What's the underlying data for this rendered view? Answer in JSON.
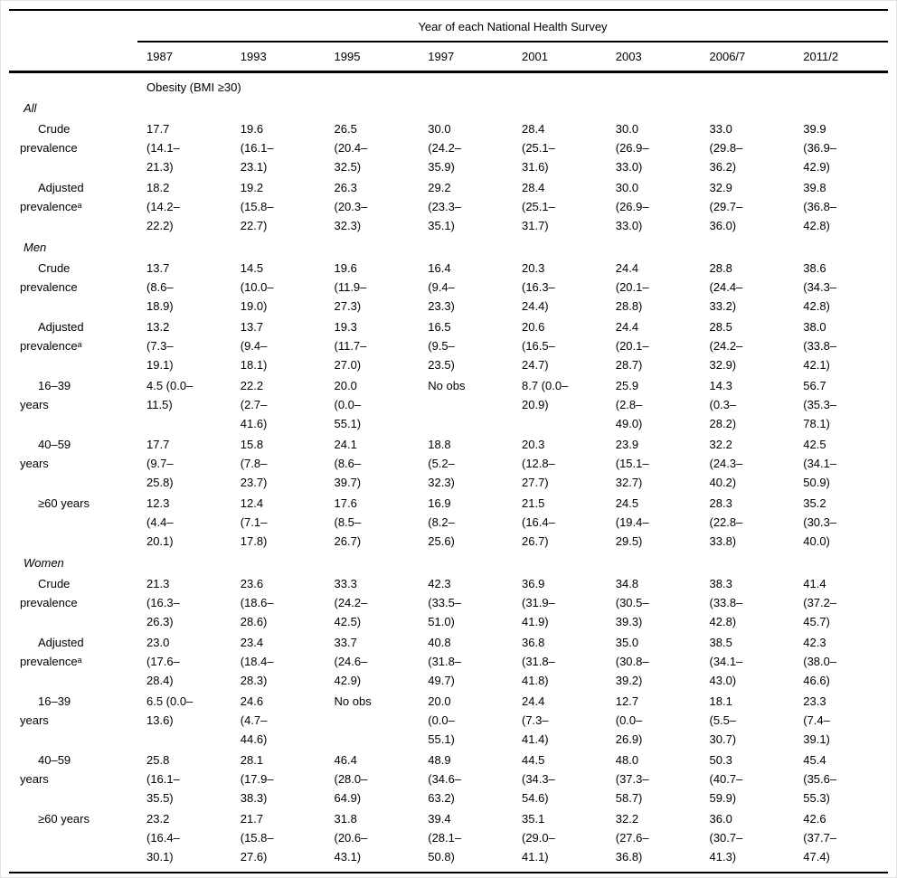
{
  "table": {
    "spanner": "Year of each National Health Survey",
    "years": [
      "1987",
      "1993",
      "1995",
      "1997",
      "2001",
      "2003",
      "2006/7",
      "2011/2"
    ],
    "subheader": "Obesity (BMI ≥30)",
    "no_observation_text": "No obs",
    "footnote_marker": "ᵃ",
    "sections": [
      {
        "label": "All",
        "rows": [
          {
            "label": "Crude\nprevalence",
            "cells": [
              "17.7\n(14.1–\n21.3)",
              "19.6\n(16.1–\n23.1)",
              "26.5\n(20.4–\n32.5)",
              "30.0\n(24.2–\n35.9)",
              "28.4\n(25.1–\n31.6)",
              "30.0\n(26.9–\n33.0)",
              "33.0\n(29.8–\n36.2)",
              "39.9\n(36.9–\n42.9)"
            ]
          },
          {
            "label": "Adjusted\nprevalenceᵃ",
            "cells": [
              "18.2\n(14.2–\n22.2)",
              "19.2\n(15.8–\n22.7)",
              "26.3\n(20.3–\n32.3)",
              "29.2\n(23.3–\n35.1)",
              "28.4\n(25.1–\n31.7)",
              "30.0\n(26.9–\n33.0)",
              "32.9\n(29.7–\n36.0)",
              "39.8\n(36.8–\n42.8)"
            ]
          }
        ]
      },
      {
        "label": "Men",
        "rows": [
          {
            "label": "Crude\nprevalence",
            "cells": [
              "13.7\n(8.6–\n18.9)",
              "14.5\n(10.0–\n19.0)",
              "19.6\n(11.9–\n27.3)",
              "16.4\n(9.4–\n23.3)",
              "20.3\n(16.3–\n24.4)",
              "24.4\n(20.1–\n28.8)",
              "28.8\n(24.4–\n33.2)",
              "38.6\n(34.3–\n42.8)"
            ]
          },
          {
            "label": "Adjusted\nprevalenceᵃ",
            "cells": [
              "13.2\n(7.3–\n19.1)",
              "13.7\n(9.4–\n18.1)",
              "19.3\n(11.7–\n27.0)",
              "16.5\n(9.5–\n23.5)",
              "20.6\n(16.5–\n24.7)",
              "24.4\n(20.1–\n28.7)",
              "28.5\n(24.2–\n32.9)",
              "38.0\n(33.8–\n42.1)"
            ]
          },
          {
            "label": "16–39\nyears",
            "cells": [
              "4.5 (0.0–\n11.5)",
              "22.2\n(2.7–\n41.6)",
              "20.0\n(0.0–\n55.1)",
              "No obs",
              "8.7 (0.0–\n20.9)",
              "25.9\n(2.8–\n49.0)",
              "14.3\n(0.3–\n28.2)",
              "56.7\n(35.3–\n78.1)"
            ]
          },
          {
            "label": "40–59\nyears",
            "cells": [
              "17.7\n(9.7–\n25.8)",
              "15.8\n(7.8–\n23.7)",
              "24.1\n(8.6–\n39.7)",
              "18.8\n(5.2–\n32.3)",
              "20.3\n(12.8–\n27.7)",
              "23.9\n(15.1–\n32.7)",
              "32.2\n(24.3–\n40.2)",
              "42.5\n(34.1–\n50.9)"
            ]
          },
          {
            "label": "≥60 years",
            "cells": [
              "12.3\n(4.4–\n20.1)",
              "12.4\n(7.1–\n17.8)",
              "17.6\n(8.5–\n26.7)",
              "16.9\n(8.2–\n25.6)",
              "21.5\n(16.4–\n26.7)",
              "24.5\n(19.4–\n29.5)",
              "28.3\n(22.8–\n33.8)",
              "35.2\n(30.3–\n40.0)"
            ]
          }
        ]
      },
      {
        "label": "Women",
        "rows": [
          {
            "label": "Crude\nprevalence",
            "cells": [
              "21.3\n(16.3–\n26.3)",
              "23.6\n(18.6–\n28.6)",
              "33.3\n(24.2–\n42.5)",
              "42.3\n(33.5–\n51.0)",
              "36.9\n(31.9–\n41.9)",
              "34.8\n(30.5–\n39.3)",
              "38.3\n(33.8–\n42.8)",
              "41.4\n(37.2–\n45.7)"
            ]
          },
          {
            "label": "Adjusted\nprevalenceᵃ",
            "cells": [
              "23.0\n(17.6–\n28.4)",
              "23.4\n(18.4–\n28.3)",
              "33.7\n(24.6–\n42.9)",
              "40.8\n(31.8–\n49.7)",
              "36.8\n(31.8–\n41.8)",
              "35.0\n(30.8–\n39.2)",
              "38.5\n(34.1–\n43.0)",
              "42.3\n(38.0–\n46.6)"
            ]
          },
          {
            "label": "16–39\nyears",
            "cells": [
              "6.5 (0.0–\n13.6)",
              "24.6\n(4.7–\n44.6)",
              "No obs",
              "20.0\n(0.0–\n55.1)",
              "24.4\n(7.3–\n41.4)",
              "12.7\n(0.0–\n26.9)",
              "18.1\n(5.5–\n30.7)",
              "23.3\n(7.4–\n39.1)"
            ]
          },
          {
            "label": "40–59\nyears",
            "cells": [
              "25.8\n(16.1–\n35.5)",
              "28.1\n(17.9–\n38.3)",
              "46.4\n(28.0–\n64.9)",
              "48.9\n(34.6–\n63.2)",
              "44.5\n(34.3–\n54.6)",
              "48.0\n(37.3–\n58.7)",
              "50.3\n(40.7–\n59.9)",
              "45.4\n(35.6–\n55.3)"
            ]
          },
          {
            "label": "≥60 years",
            "cells": [
              "23.2\n(16.4–\n30.1)",
              "21.7\n(15.8–\n27.6)",
              "31.8\n(20.6–\n43.1)",
              "39.4\n(28.1–\n50.8)",
              "35.1\n(29.0–\n41.1)",
              "32.2\n(27.6–\n36.8)",
              "36.0\n(30.7–\n41.3)",
              "42.6\n(37.7–\n47.4)"
            ]
          }
        ]
      }
    ]
  }
}
